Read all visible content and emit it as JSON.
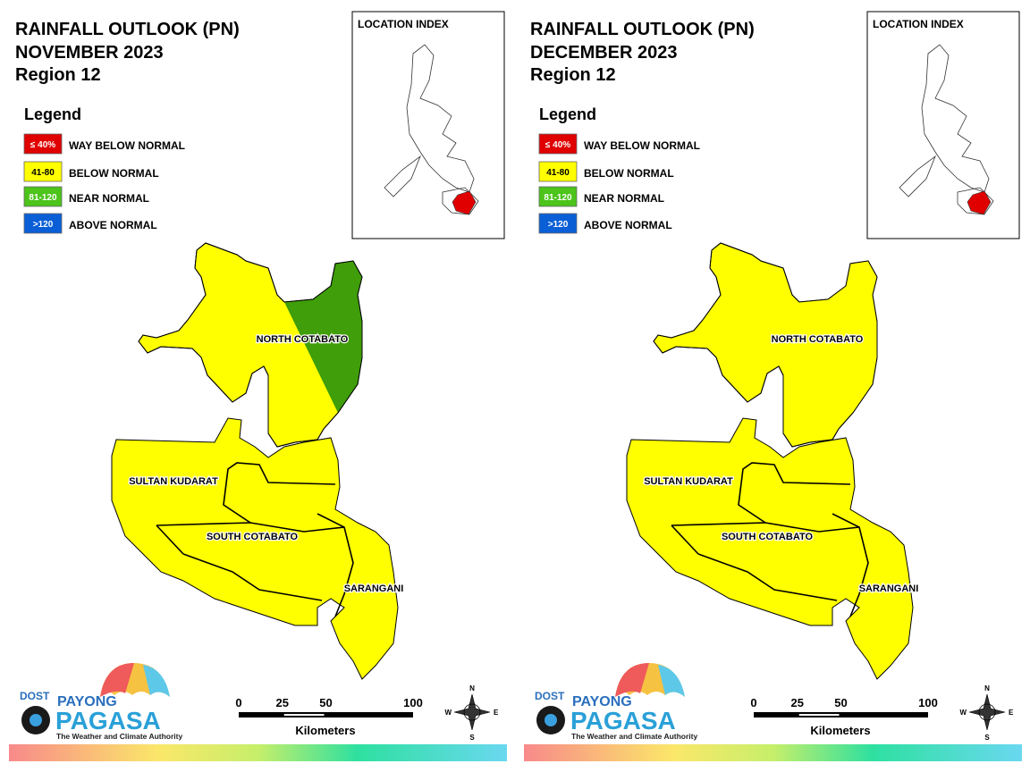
{
  "panels": [
    {
      "title": "RAINFALL OUTLOOK (PN)",
      "month": "NOVEMBER 2023",
      "region": "Region 12",
      "legend_title": "Legend",
      "legend": [
        {
          "swatch": "≤ 40%",
          "label": "WAY BELOW NORMAL",
          "color": "#e00000"
        },
        {
          "swatch": "41-80",
          "label": "BELOW NORMAL",
          "color": "#ffff00"
        },
        {
          "swatch": "81-120",
          "label": "NEAR NORMAL",
          "color": "#4cc41a"
        },
        {
          "swatch": ">120",
          "label": "ABOVE NORMAL",
          "color": "#0a5fd6"
        }
      ],
      "index_title": "LOCATION INDEX",
      "provinces": [
        {
          "name": "NORTH COTABATO",
          "colors": [
            "#ffff00",
            "#3f9e0a"
          ]
        },
        {
          "name": "SULTAN KUDARAT",
          "color": "#ffff00"
        },
        {
          "name": "SOUTH COTABATO",
          "color": "#ffff00"
        },
        {
          "name": "SARANGANI",
          "color": "#ffff00"
        }
      ],
      "scale_ticks": [
        0,
        25,
        50,
        100
      ],
      "scale_unit": "Kilometers",
      "compass": [
        "N",
        "E",
        "S",
        "W"
      ],
      "logo": {
        "dost": "DOST",
        "payong": "PAYONG",
        "pagasa": "PAGASA",
        "tagline": "The Weather and Climate Authority"
      }
    },
    {
      "title": "RAINFALL OUTLOOK (PN)",
      "month": "DECEMBER 2023",
      "region": "Region 12",
      "legend_title": "Legend",
      "legend": [
        {
          "swatch": "≤ 40%",
          "label": "WAY BELOW NORMAL",
          "color": "#e00000"
        },
        {
          "swatch": "41-80",
          "label": "BELOW NORMAL",
          "color": "#ffff00"
        },
        {
          "swatch": "81-120",
          "label": "NEAR NORMAL",
          "color": "#4cc41a"
        },
        {
          "swatch": ">120",
          "label": "ABOVE NORMAL",
          "color": "#0a5fd6"
        }
      ],
      "index_title": "LOCATION INDEX",
      "provinces": [
        {
          "name": "NORTH COTABATO",
          "colors": [
            "#ffff00",
            "#ffff00"
          ]
        },
        {
          "name": "SULTAN KUDARAT",
          "color": "#ffff00"
        },
        {
          "name": "SOUTH COTABATO",
          "color": "#ffff00"
        },
        {
          "name": "SARANGANI",
          "color": "#ffff00"
        }
      ],
      "scale_ticks": [
        0,
        25,
        50,
        100
      ],
      "scale_unit": "Kilometers",
      "compass": [
        "N",
        "E",
        "S",
        "W"
      ],
      "logo": {
        "dost": "DOST",
        "payong": "PAYONG",
        "pagasa": "PAGASA",
        "tagline": "The Weather and Climate Authority"
      }
    }
  ]
}
